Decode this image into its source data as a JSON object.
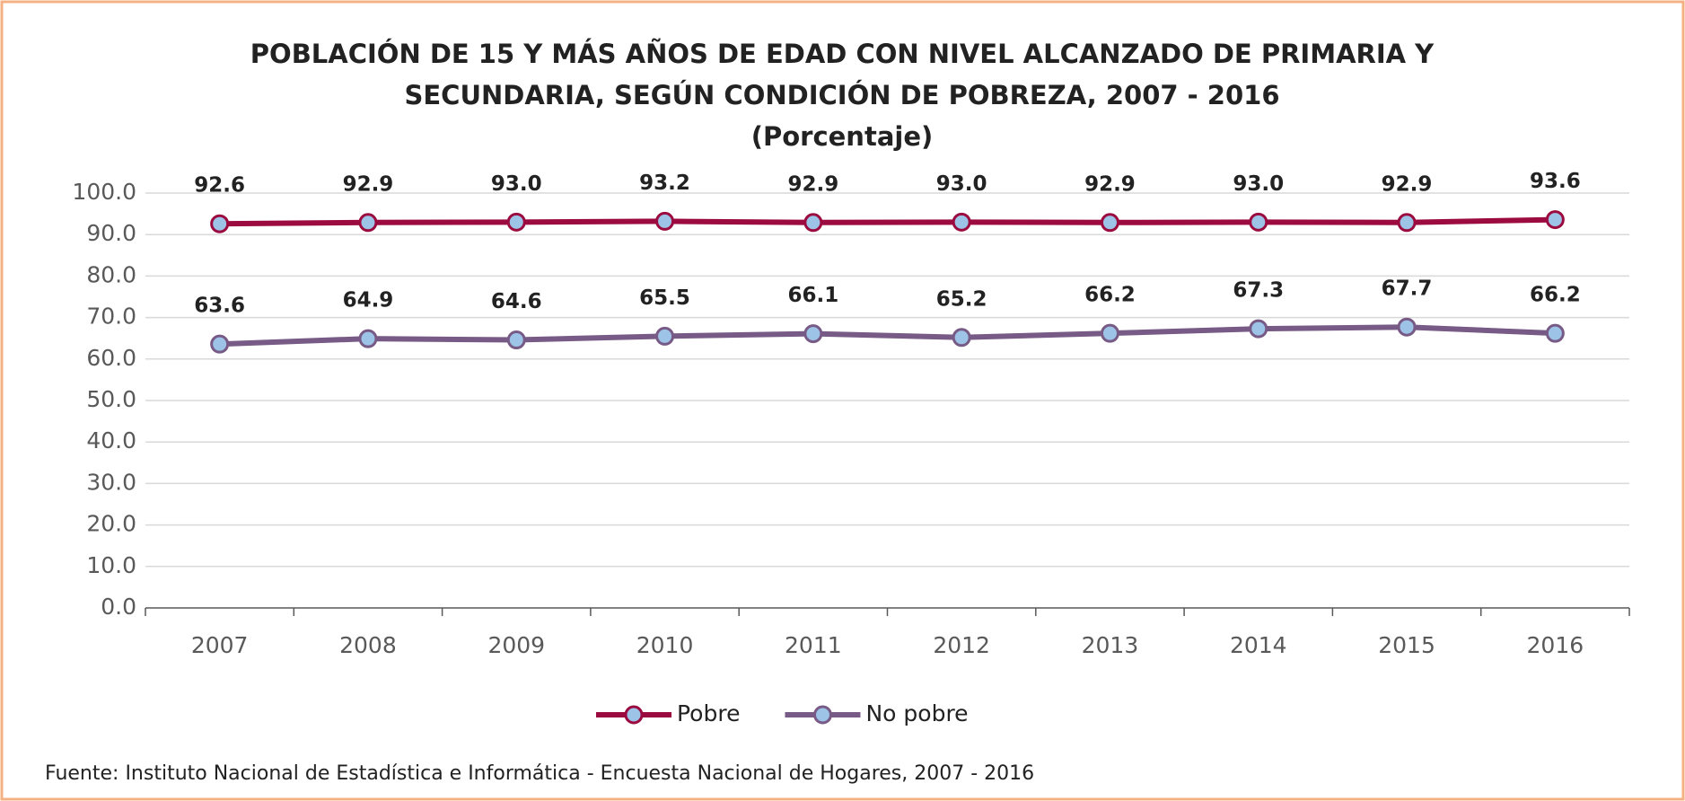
{
  "chart_data": {
    "type": "line",
    "title": [
      "POBLACIÓN DE 15 Y MÁS AÑOS DE EDAD CON NIVEL ALCANZADO DE PRIMARIA Y",
      "SECUNDARIA, SEGÚN CONDICIÓN DE POBREZA, 2007 - 2016"
    ],
    "subtitle": "(Porcentaje)",
    "categories": [
      "2007",
      "2008",
      "2009",
      "2010",
      "2011",
      "2012",
      "2013",
      "2014",
      "2015",
      "2016"
    ],
    "series": [
      {
        "name": "Pobre",
        "color": "#9b0b3f",
        "marker_color": "#9dc3e6",
        "values": [
          92.6,
          92.9,
          93.0,
          93.2,
          92.9,
          93.0,
          92.9,
          93.0,
          92.9,
          93.6
        ],
        "value_labels": [
          "92.6",
          "92.9",
          "93.0",
          "93.2",
          "92.9",
          "93.0",
          "92.9",
          "93.0",
          "92.9",
          "93.6"
        ]
      },
      {
        "name": "No pobre",
        "color": "#775a85",
        "marker_color": "#9dc3e6",
        "values": [
          63.6,
          64.9,
          64.6,
          65.5,
          66.1,
          65.2,
          66.2,
          67.3,
          67.7,
          66.2
        ],
        "value_labels": [
          "63.6",
          "64.9",
          "64.6",
          "65.5",
          "66.1",
          "65.2",
          "66.2",
          "67.3",
          "67.7",
          "66.2"
        ]
      }
    ],
    "ylim": [
      0,
      100
    ],
    "yticks": [
      {
        "value": 0,
        "label": "0.0"
      },
      {
        "value": 10,
        "label": "10.0"
      },
      {
        "value": 20,
        "label": "20.0"
      },
      {
        "value": 30,
        "label": "30.0"
      },
      {
        "value": 40,
        "label": "40.0"
      },
      {
        "value": 50,
        "label": "50.0"
      },
      {
        "value": 60,
        "label": "60.0"
      },
      {
        "value": 70,
        "label": "70.0"
      },
      {
        "value": 80,
        "label": "80.0"
      },
      {
        "value": 90,
        "label": "90.0"
      },
      {
        "value": 100,
        "label": "100.0"
      }
    ],
    "grid": true,
    "legend": "bottom",
    "source": "Fuente: Instituto Nacional de Estadística e Informática - Encuesta Nacional de Hogares, 2007 - 2016"
  }
}
